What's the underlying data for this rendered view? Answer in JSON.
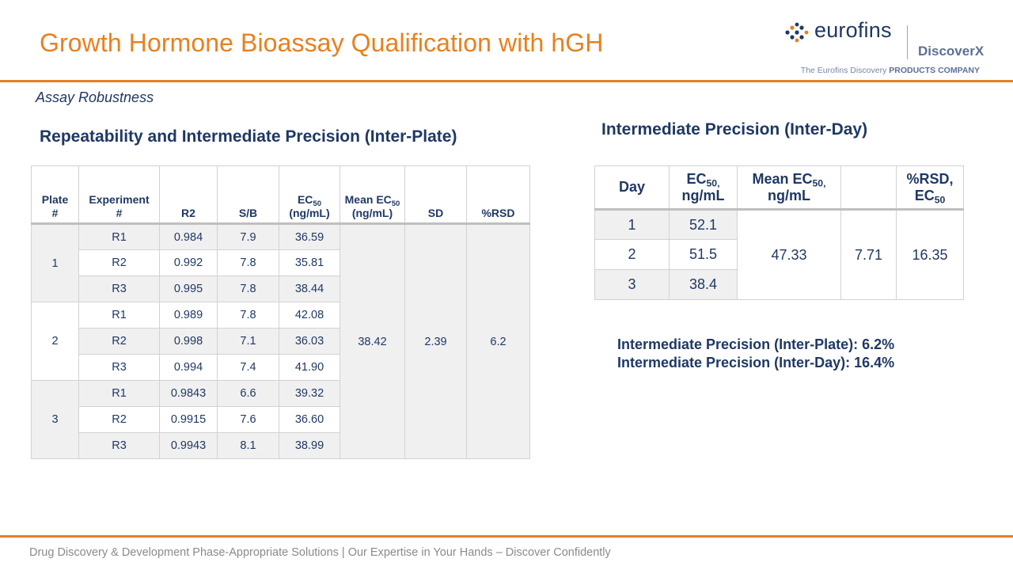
{
  "title": "Growth Hormone Bioassay Qualification with hGH",
  "logo": {
    "name": "eurofins",
    "sub_brand": "DiscoverX",
    "tagline_prefix": "The Eurofins Discovery ",
    "tagline_bold": "PRODUCTS COMPANY"
  },
  "section_label": "Assay Robustness",
  "inter_plate": {
    "heading": "Repeatability and Intermediate Precision (Inter-Plate)",
    "headers": {
      "plate_a": "Plate",
      "plate_b": "#",
      "experiment_a": "Experiment",
      "experiment_b": "#",
      "r2": "R2",
      "sb": "S/B",
      "ec50_a": "EC",
      "ec50_sub": "50",
      "ec50_b": "(ng/mL)",
      "mean_a": "Mean EC",
      "mean_sub": "50",
      "mean_b": "(ng/mL)",
      "sd": "SD",
      "rsd": "%RSD"
    },
    "plates": [
      {
        "plate": "1",
        "rows": [
          {
            "exp": "R1",
            "r2": "0.984",
            "sb": "7.9",
            "ec50": "36.59"
          },
          {
            "exp": "R2",
            "r2": "0.992",
            "sb": "7.8",
            "ec50": "35.81"
          },
          {
            "exp": "R3",
            "r2": "0.995",
            "sb": "7.8",
            "ec50": "38.44"
          }
        ]
      },
      {
        "plate": "2",
        "rows": [
          {
            "exp": "R1",
            "r2": "0.989",
            "sb": "7.8",
            "ec50": "42.08"
          },
          {
            "exp": "R2",
            "r2": "0.998",
            "sb": "7.1",
            "ec50": "36.03"
          },
          {
            "exp": "R3",
            "r2": "0.994",
            "sb": "7.4",
            "ec50": "41.90"
          }
        ]
      },
      {
        "plate": "3",
        "rows": [
          {
            "exp": "R1",
            "r2": "0.9843",
            "sb": "6.6",
            "ec50": "39.32"
          },
          {
            "exp": "R2",
            "r2": "0.9915",
            "sb": "7.6",
            "ec50": "36.60"
          },
          {
            "exp": "R3",
            "r2": "0.9943",
            "sb": "8.1",
            "ec50": "38.99"
          }
        ]
      }
    ],
    "mean_ec50": "38.42",
    "sd": "2.39",
    "rsd": "6.2"
  },
  "inter_day": {
    "heading": "Intermediate Precision (Inter-Day)",
    "headers": {
      "day": "Day",
      "ec50_a": "EC",
      "ec50_sub": "50,",
      "ec50_b": "ng/mL",
      "mean_a": "Mean EC",
      "mean_sub": "50,",
      "mean_b": "ng/mL",
      "sd": "",
      "rsd_a": "%RSD,",
      "rsd_b": "EC",
      "rsd_sub": "50"
    },
    "rows": [
      {
        "day": "1",
        "ec50": "52.1"
      },
      {
        "day": "2",
        "ec50": "51.5"
      },
      {
        "day": "3",
        "ec50": "38.4"
      }
    ],
    "mean_ec50": "47.33",
    "sd": "7.71",
    "rsd": "16.35"
  },
  "notes": [
    "Intermediate Precision (Inter-Plate): 6.2%",
    "Intermediate Precision (Inter-Day): 16.4%"
  ],
  "footer": "Drug Discovery & Development Phase-Appropriate Solutions | Our Expertise in Your Hands – Discover Confidently",
  "colors": {
    "accent": "#e8801f",
    "text": "#1f3864",
    "cell_shading": "#f0f0f0"
  }
}
